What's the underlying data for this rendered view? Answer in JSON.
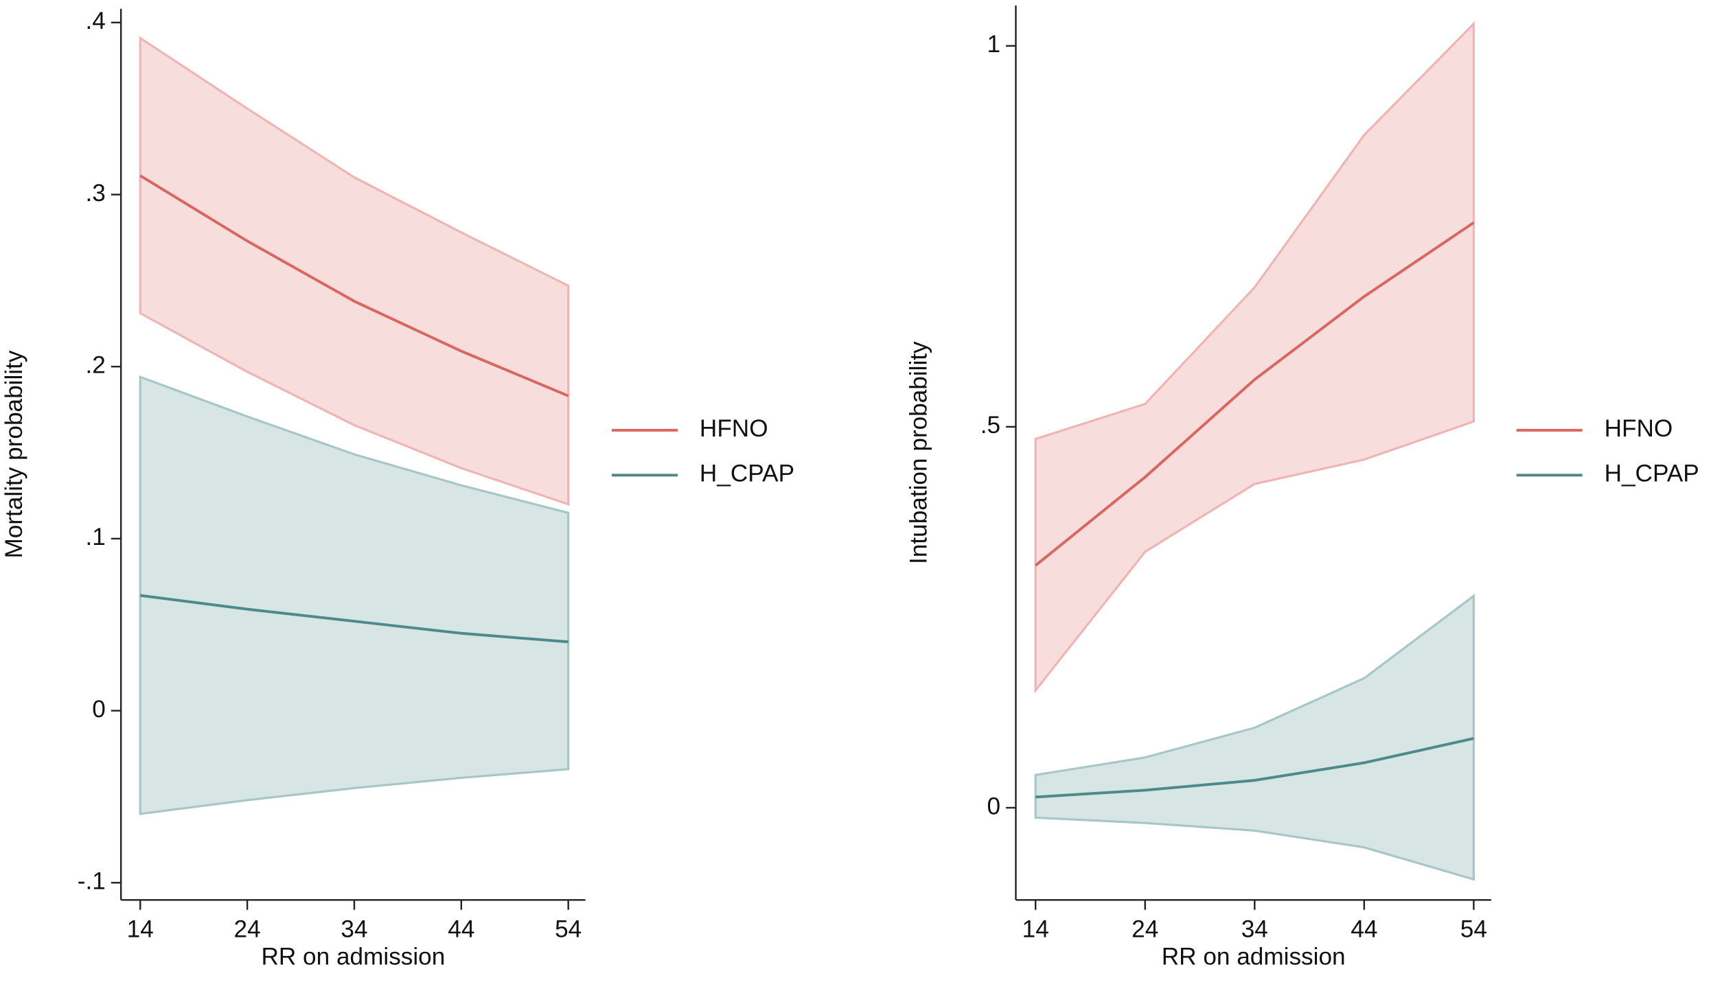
{
  "chart_data": [
    {
      "type": "line",
      "xlabel": "RR on admission",
      "ylabel": "Mortality probability",
      "x": [
        14,
        24,
        34,
        44,
        54
      ],
      "xlim": [
        12.2,
        55.6
      ],
      "xticks": [
        14,
        24,
        34,
        44,
        54
      ],
      "ylim": [
        -0.11,
        0.408
      ],
      "yticks": [
        {
          "value": -0.1,
          "label": "-.1"
        },
        0,
        {
          "value": 0.1,
          "label": ".1"
        },
        {
          "value": 0.2,
          "label": ".2"
        },
        {
          "value": 0.3,
          "label": ".3"
        },
        {
          "value": 0.4,
          "label": ".4"
        }
      ],
      "legend": "right",
      "series": [
        {
          "name": "HFNO",
          "color": "#d9675f",
          "band_color": "#f0b4b4",
          "values": [
            0.311,
            0.273,
            0.238,
            0.209,
            0.183
          ],
          "lower": [
            0.231,
            0.197,
            0.166,
            0.141,
            0.12
          ],
          "upper": [
            0.391,
            0.35,
            0.31,
            0.278,
            0.247
          ]
        },
        {
          "name": "H_CPAP",
          "color": "#4f8a8b",
          "band_color": "#a6c7c6",
          "values": [
            0.067,
            0.059,
            0.052,
            0.045,
            0.04
          ],
          "lower": [
            -0.06,
            -0.052,
            -0.045,
            -0.039,
            -0.034
          ],
          "upper": [
            0.194,
            0.171,
            0.149,
            0.131,
            0.115
          ]
        }
      ]
    },
    {
      "type": "line",
      "xlabel": "RR on admission",
      "ylabel": "Intubation probability",
      "x": [
        14,
        24,
        34,
        44,
        54
      ],
      "xlim": [
        12.2,
        55.6
      ],
      "xticks": [
        14,
        24,
        34,
        44,
        54
      ],
      "ylim": [
        -0.121,
        1.053
      ],
      "yticks": [
        0,
        {
          "value": 0.5,
          "label": ".5"
        },
        1
      ],
      "legend": "right",
      "series": [
        {
          "name": "HFNO",
          "color": "#d9675f",
          "band_color": "#f0b4b4",
          "values": [
            0.318,
            0.434,
            0.562,
            0.671,
            0.768
          ],
          "lower": [
            0.154,
            0.336,
            0.425,
            0.457,
            0.507
          ],
          "upper": [
            0.484,
            0.53,
            0.683,
            0.883,
            1.029
          ]
        },
        {
          "name": "H_CPAP",
          "color": "#4f8a8b",
          "band_color": "#a6c7c6",
          "values": [
            0.014,
            0.023,
            0.036,
            0.059,
            0.091
          ],
          "lower": [
            -0.013,
            -0.02,
            -0.03,
            -0.052,
            -0.094
          ],
          "upper": [
            0.043,
            0.066,
            0.105,
            0.17,
            0.278
          ]
        }
      ]
    }
  ]
}
